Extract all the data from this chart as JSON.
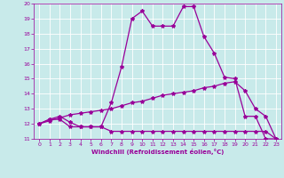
{
  "xlabel": "Windchill (Refroidissement éolien,°C)",
  "background_color": "#c8eaea",
  "line_color": "#990099",
  "grid_color": "#ffffff",
  "xlim": [
    -0.5,
    23.5
  ],
  "ylim": [
    11,
    20
  ],
  "xticks": [
    0,
    1,
    2,
    3,
    4,
    5,
    6,
    7,
    8,
    9,
    10,
    11,
    12,
    13,
    14,
    15,
    16,
    17,
    18,
    19,
    20,
    21,
    22,
    23
  ],
  "yticks": [
    11,
    12,
    13,
    14,
    15,
    16,
    17,
    18,
    19,
    20
  ],
  "curve1_x": [
    0,
    1,
    2,
    3,
    4,
    5,
    6,
    7,
    8,
    9,
    10,
    11,
    12,
    13,
    14,
    15,
    16,
    17,
    18,
    19,
    20,
    21,
    22,
    23
  ],
  "curve1_y": [
    12.0,
    12.3,
    12.3,
    11.8,
    11.8,
    11.8,
    11.8,
    11.5,
    11.5,
    11.5,
    11.5,
    11.5,
    11.5,
    11.5,
    11.5,
    11.5,
    11.5,
    11.5,
    11.5,
    11.5,
    11.5,
    11.5,
    11.5,
    11.0
  ],
  "curve2_x": [
    0,
    1,
    2,
    3,
    4,
    5,
    6,
    7,
    8,
    9,
    10,
    11,
    12,
    13,
    14,
    15,
    16,
    17,
    18,
    19,
    20,
    21,
    22,
    23
  ],
  "curve2_y": [
    12.0,
    12.2,
    12.4,
    12.6,
    12.7,
    12.8,
    12.9,
    13.0,
    13.2,
    13.4,
    13.5,
    13.7,
    13.9,
    14.0,
    14.1,
    14.2,
    14.4,
    14.5,
    14.7,
    14.8,
    14.2,
    13.0,
    12.5,
    11.0
  ],
  "curve3_x": [
    0,
    1,
    2,
    3,
    4,
    5,
    6,
    7,
    8,
    9,
    10,
    11,
    12,
    13,
    14,
    15,
    16,
    17,
    18,
    19,
    20,
    21,
    22,
    23
  ],
  "curve3_y": [
    12.0,
    12.3,
    12.5,
    12.1,
    11.8,
    11.8,
    11.8,
    13.4,
    15.8,
    19.0,
    19.5,
    18.5,
    18.5,
    18.5,
    19.8,
    19.8,
    17.8,
    16.7,
    15.1,
    15.0,
    12.5,
    12.5,
    11.0,
    11.0
  ]
}
